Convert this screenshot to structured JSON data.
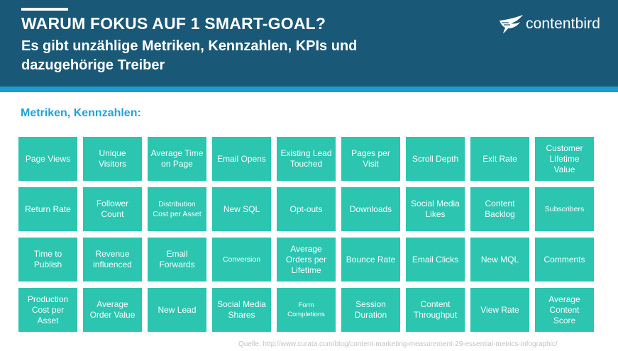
{
  "header": {
    "title": "WARUM FOKUS AUF 1 SMART-GOAL?",
    "subtitle": "Es gibt unzählige Metriken, Kennzahlen, KPIs und dazugehörige Treiber",
    "logo_text": "contentbird",
    "colors": {
      "header_bg": "#1a5877",
      "band": "#1a9dd2"
    }
  },
  "section": {
    "title": "Metriken, Kennzahlen:",
    "color": "#21a3d6"
  },
  "tile_color": "#2bc5b0",
  "metrics": [
    "Page Views",
    "Unique Visitors",
    "Average Time on Page",
    "Email Opens",
    "Existing Lead Touched",
    "Pages per Visit",
    "Scroll Depth",
    "Exit Rate",
    "Customer Lifetime Value",
    "Return Rate",
    "Follower Count",
    "Distribution Cost per Asset",
    "New SQL",
    "Opt-outs",
    "Downloads",
    "Social Media Likes",
    "Content Backlog",
    "Subscribers",
    "Time to Publish",
    "Revenue influenced",
    "Email Forwards",
    "Conversion",
    "Average Orders per Lifetime",
    "Bounce Rate",
    "Email Clicks",
    "New MQL",
    "Comments",
    "Production Cost per Asset",
    "Average Order Value",
    "New Lead",
    "Social Media Shares",
    "Form Completions",
    "Session Duration",
    "Content Throughput",
    "View Rate",
    "Average Content Score"
  ],
  "source": "Quelle: http://www.curata.com/blog/content-marketing-measurement-29-essential-metrics-infographic/"
}
